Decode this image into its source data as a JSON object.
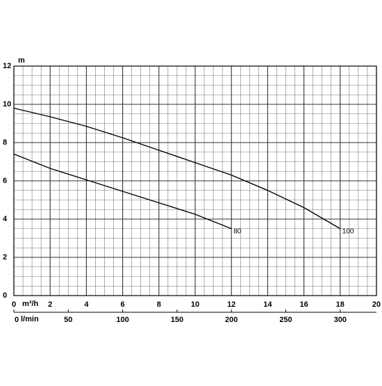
{
  "chart_data": {
    "type": "line",
    "y_label": "m",
    "x_label": "m³/h",
    "x2_label": "l/min",
    "x": [
      0,
      2,
      4,
      6,
      8,
      10,
      12,
      14,
      16,
      18
    ],
    "series": [
      {
        "name": "80",
        "color": "#000000",
        "values": [
          7.4,
          6.65,
          6.05,
          5.45,
          4.85,
          4.25,
          3.5,
          null,
          null,
          null
        ]
      },
      {
        "name": "100",
        "color": "#000000",
        "values": [
          9.8,
          9.35,
          8.85,
          8.25,
          7.6,
          6.95,
          6.3,
          5.5,
          4.6,
          3.5
        ]
      }
    ],
    "xlim": [
      0,
      20
    ],
    "xticks": [
      0,
      2,
      4,
      6,
      8,
      10,
      12,
      14,
      16,
      18,
      20
    ],
    "x2lim": [
      0,
      333.33
    ],
    "x2ticks": [
      0,
      50,
      100,
      150,
      200,
      250,
      300
    ],
    "ylim": [
      0,
      12
    ],
    "yticks": [
      0,
      2,
      4,
      6,
      8,
      10,
      12
    ],
    "grid": true
  }
}
